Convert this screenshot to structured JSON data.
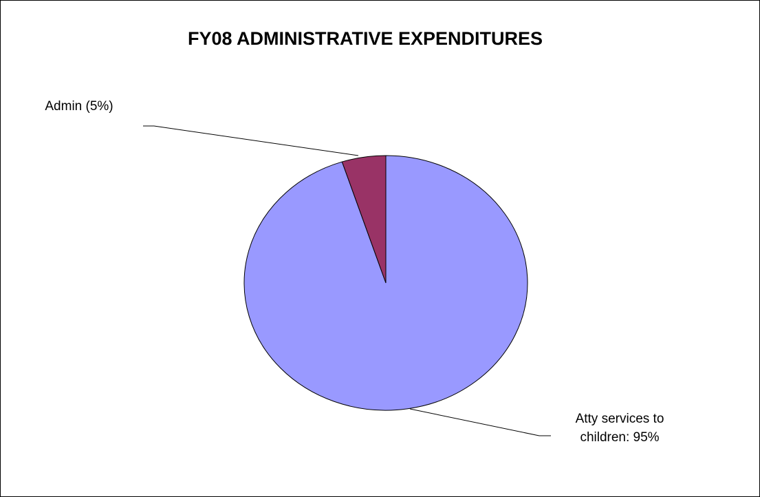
{
  "chart_data": {
    "type": "pie",
    "title": "FY08 ADMINISTRATIVE  EXPENDITURES",
    "slices": [
      {
        "label": "Atty services to children: 95%",
        "label_lines": [
          "Atty services to",
          "children: 95%"
        ],
        "value": 95,
        "color": "#9999ff"
      },
      {
        "label": "Admin (5%)",
        "label_lines": [
          "Admin (5%)"
        ],
        "value": 5,
        "color": "#993366"
      }
    ],
    "legend": "none"
  }
}
